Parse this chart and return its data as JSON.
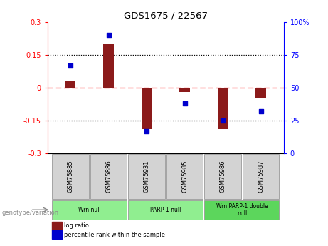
{
  "title": "GDS1675 / 22567",
  "samples": [
    "GSM75885",
    "GSM75886",
    "GSM75931",
    "GSM75985",
    "GSM75986",
    "GSM75987"
  ],
  "log_ratio": [
    0.03,
    0.2,
    -0.19,
    -0.02,
    -0.19,
    -0.05
  ],
  "percentile": [
    67,
    90,
    17,
    38,
    25,
    32
  ],
  "ylim_left": [
    -0.3,
    0.3
  ],
  "ylim_right": [
    0,
    100
  ],
  "yticks_left": [
    -0.3,
    -0.15,
    0,
    0.15,
    0.3
  ],
  "yticks_right": [
    0,
    25,
    50,
    75,
    100
  ],
  "ytick_labels_left": [
    "-0.3",
    "-0.15",
    "0",
    "0.15",
    "0.3"
  ],
  "ytick_labels_right": [
    "0",
    "25",
    "50",
    "75",
    "100%"
  ],
  "bar_color": "#8B1A1A",
  "dot_color": "#0000CD",
  "groups": [
    {
      "label": "Wrn null",
      "start": 0,
      "end": 1,
      "color": "#90EE90"
    },
    {
      "label": "PARP-1 null",
      "start": 2,
      "end": 3,
      "color": "#90EE90"
    },
    {
      "label": "Wrn PARP-1 double\nnull",
      "start": 4,
      "end": 5,
      "color": "#5CD65C"
    }
  ],
  "legend_bar_color": "#8B1A1A",
  "legend_dot_color": "#0000CD",
  "legend_bar_label": "log ratio",
  "legend_dot_label": "percentile rank within the sample",
  "genotype_label": "genotype/variation",
  "background_color": "#FFFFFF",
  "plot_bg_color": "#FFFFFF",
  "sample_box_color": "#D3D3D3"
}
